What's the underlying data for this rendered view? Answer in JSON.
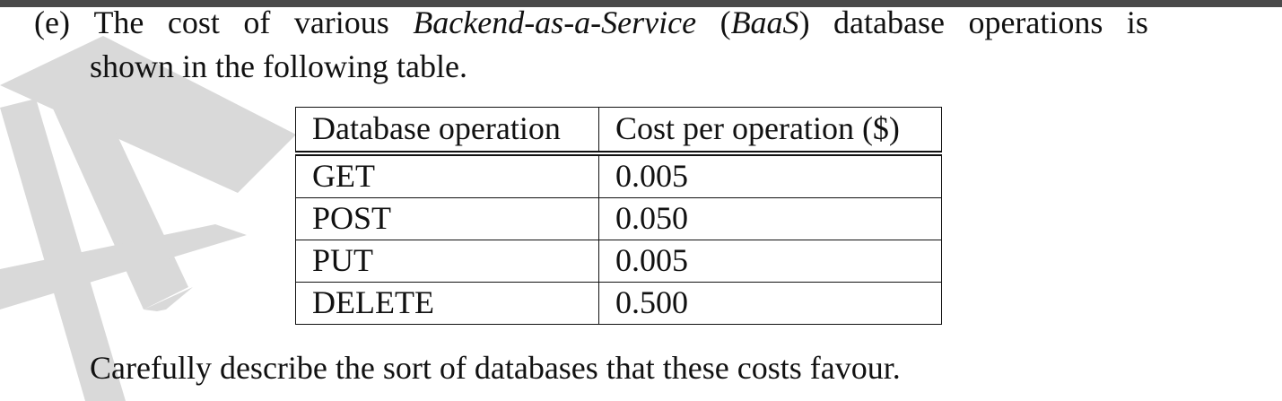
{
  "question": {
    "label": "(e)",
    "words_line1": [
      "The",
      "cost",
      "of",
      "various"
    ],
    "term_italic": "Backend-as-a-Service",
    "abbr_open": "(",
    "abbr_italic": "BaaS",
    "abbr_close": ")",
    "words_line1_end": [
      "database",
      "operations",
      "is"
    ],
    "line2": "shown in the following table.",
    "prompt": "Carefully describe the sort of databases that these costs favour."
  },
  "table": {
    "headers": [
      "Database operation",
      "Cost per operation ($)"
    ],
    "rows": [
      [
        "GET",
        "0.005"
      ],
      [
        "POST",
        "0.050"
      ],
      [
        "PUT",
        "0.005"
      ],
      [
        "DELETE",
        "0.500"
      ]
    ]
  },
  "colors": {
    "top_bar": "#4a4a4a",
    "watermark": "#d9d9d9",
    "text": "#111111"
  }
}
